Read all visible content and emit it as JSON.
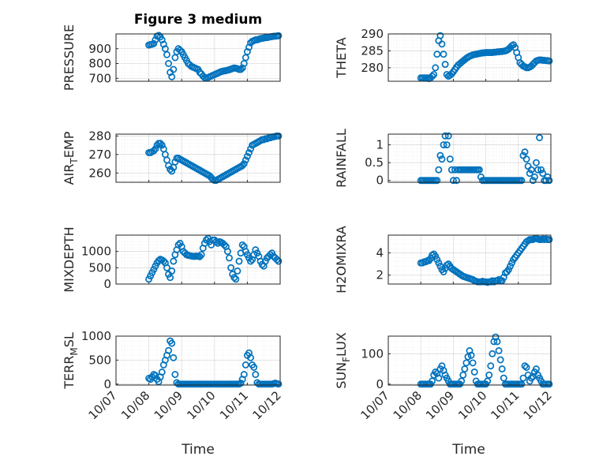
{
  "figure": {
    "title": "Figure 3 medium",
    "marker_color": "#0072BD",
    "x_axis": {
      "label": "Time",
      "range": [
        "10/07",
        "10/12"
      ],
      "tick_labels": [
        "10/07",
        "10/08",
        "10/09",
        "10/10",
        "10/11",
        "10/12"
      ]
    }
  },
  "chart_data": [
    {
      "id": "pressure",
      "type": "scatter",
      "ylabel": "PRESSURE",
      "ylabel_sub": "",
      "ylim": [
        680,
        1000
      ],
      "yticks": [
        700,
        800,
        900
      ],
      "grid": true,
      "minor_grid": true,
      "x": [
        1.0,
        1.05,
        1.1,
        1.15,
        1.2,
        1.25,
        1.3,
        1.35,
        1.4,
        1.45,
        1.5,
        1.55,
        1.6,
        1.65,
        1.7,
        1.75,
        1.8,
        1.85,
        1.9,
        1.95,
        2.0,
        2.05,
        2.1,
        2.15,
        2.2,
        2.25,
        2.3,
        2.35,
        2.4,
        2.45,
        2.5,
        2.55,
        2.6,
        2.65,
        2.7,
        2.75,
        2.8,
        2.85,
        2.9,
        2.95,
        3.0,
        3.05,
        3.1,
        3.15,
        3.2,
        3.25,
        3.3,
        3.35,
        3.4,
        3.45,
        3.5,
        3.55,
        3.6,
        3.65,
        3.7,
        3.75,
        3.8,
        3.85,
        3.9,
        3.95,
        4.0,
        4.05,
        4.1,
        4.15,
        4.2,
        4.25,
        4.3,
        4.35,
        4.4,
        4.45,
        4.5,
        4.55,
        4.6,
        4.65,
        4.7,
        4.75,
        4.8,
        4.85,
        4.9,
        4.95
      ],
      "y": [
        925,
        928,
        930,
        935,
        960,
        985,
        990,
        980,
        960,
        930,
        900,
        860,
        800,
        740,
        710,
        760,
        840,
        880,
        900,
        890,
        880,
        860,
        840,
        820,
        800,
        790,
        780,
        775,
        770,
        765,
        760,
        740,
        730,
        715,
        705,
        700,
        705,
        710,
        715,
        720,
        725,
        730,
        735,
        740,
        745,
        748,
        750,
        752,
        755,
        758,
        762,
        766,
        770,
        768,
        765,
        760,
        760,
        770,
        800,
        840,
        880,
        910,
        940,
        950,
        955,
        960,
        960,
        965,
        968,
        970,
        972,
        975,
        975,
        978,
        980,
        982,
        984,
        985,
        986,
        988
      ]
    },
    {
      "id": "theta",
      "type": "scatter",
      "ylabel": "THETA",
      "ylabel_sub": "",
      "ylim": [
        276,
        290
      ],
      "yticks": [
        280,
        285,
        290
      ],
      "grid": true,
      "minor_grid": true,
      "x": [
        1.0,
        1.05,
        1.1,
        1.15,
        1.2,
        1.25,
        1.3,
        1.35,
        1.4,
        1.45,
        1.5,
        1.55,
        1.6,
        1.65,
        1.7,
        1.75,
        1.8,
        1.85,
        1.9,
        1.95,
        2.0,
        2.05,
        2.1,
        2.15,
        2.2,
        2.25,
        2.3,
        2.35,
        2.4,
        2.45,
        2.5,
        2.55,
        2.6,
        2.65,
        2.7,
        2.75,
        2.8,
        2.85,
        2.9,
        2.95,
        3.0,
        3.05,
        3.1,
        3.15,
        3.2,
        3.25,
        3.3,
        3.35,
        3.4,
        3.45,
        3.5,
        3.55,
        3.6,
        3.65,
        3.7,
        3.75,
        3.8,
        3.85,
        3.9,
        3.95,
        4.0,
        4.05,
        4.1,
        4.15,
        4.2,
        4.25,
        4.3,
        4.35,
        4.4,
        4.45,
        4.5,
        4.55,
        4.6,
        4.65,
        4.7,
        4.75,
        4.8,
        4.85,
        4.9,
        4.95
      ],
      "y": [
        277,
        277,
        277,
        277,
        277,
        276.8,
        277,
        277.5,
        278,
        280,
        284,
        288,
        289.5,
        287,
        284,
        281,
        278,
        277.5,
        277.8,
        278.2,
        278.8,
        279.5,
        280.2,
        280.8,
        281.2,
        281.6,
        282,
        282.4,
        282.8,
        283.1,
        283.4,
        283.6,
        283.8,
        283.9,
        284,
        284.1,
        284.2,
        284.3,
        284.4,
        284.4,
        284.5,
        284.5,
        284.5,
        284.5,
        284.5,
        284.6,
        284.6,
        284.7,
        284.7,
        284.8,
        284.8,
        284.9,
        285,
        285.2,
        285.5,
        286,
        286.5,
        286.8,
        286,
        284.5,
        283,
        281.5,
        281,
        280.5,
        280.3,
        280,
        280,
        280.2,
        280.5,
        281,
        281.5,
        282,
        282.2,
        282.3,
        282.3,
        282.2,
        282.2,
        282.1,
        282.1,
        282
      ]
    },
    {
      "id": "air_temp",
      "type": "scatter",
      "ylabel": "AIR",
      "ylabel_sub": "T",
      "ylabel_rest": "EMP",
      "ylim": [
        255,
        281
      ],
      "yticks": [
        260,
        270,
        280
      ],
      "grid": true,
      "minor_grid": true,
      "x": [
        1.0,
        1.05,
        1.1,
        1.15,
        1.2,
        1.25,
        1.3,
        1.35,
        1.4,
        1.45,
        1.5,
        1.55,
        1.6,
        1.65,
        1.7,
        1.75,
        1.8,
        1.85,
        1.9,
        1.95,
        2.0,
        2.05,
        2.1,
        2.15,
        2.2,
        2.25,
        2.3,
        2.35,
        2.4,
        2.45,
        2.5,
        2.55,
        2.6,
        2.65,
        2.7,
        2.75,
        2.8,
        2.85,
        2.9,
        2.95,
        3.0,
        3.05,
        3.1,
        3.15,
        3.2,
        3.25,
        3.3,
        3.35,
        3.4,
        3.45,
        3.5,
        3.55,
        3.6,
        3.65,
        3.7,
        3.75,
        3.8,
        3.85,
        3.9,
        3.95,
        4.0,
        4.05,
        4.1,
        4.15,
        4.2,
        4.25,
        4.3,
        4.35,
        4.4,
        4.45,
        4.5,
        4.55,
        4.6,
        4.65,
        4.7,
        4.75,
        4.8,
        4.85,
        4.9,
        4.95
      ],
      "y": [
        271,
        271,
        271.5,
        272,
        273,
        275,
        276,
        276,
        275,
        273,
        270,
        267,
        264,
        262,
        261,
        263,
        266,
        268,
        268,
        267.5,
        267,
        266.5,
        266,
        265.5,
        265,
        264.5,
        264,
        263.5,
        263,
        262.5,
        262,
        261.5,
        261,
        260.5,
        260,
        259.5,
        259,
        258.5,
        257.5,
        256.5,
        256,
        256,
        256.5,
        257,
        257.5,
        258,
        258.5,
        259,
        259.5,
        260,
        260.5,
        261,
        261.5,
        262,
        262.5,
        263,
        263.5,
        264,
        265,
        267,
        269,
        271,
        273,
        275,
        275.5,
        276,
        276.5,
        277,
        277.5,
        278,
        278,
        278.5,
        278.5,
        279,
        279,
        279.5,
        279.5,
        279.8,
        280,
        280
      ]
    },
    {
      "id": "rainfall",
      "type": "scatter",
      "ylabel": "RAINFALL",
      "ylabel_sub": "",
      "ylim": [
        -0.05,
        1.3
      ],
      "yticks": [
        0,
        0.5,
        1
      ],
      "ytick_labels": [
        "0",
        "0.5",
        "1"
      ],
      "grid": true,
      "minor_grid": true,
      "x": [
        1.0,
        1.05,
        1.1,
        1.15,
        1.2,
        1.25,
        1.3,
        1.35,
        1.4,
        1.45,
        1.5,
        1.55,
        1.6,
        1.65,
        1.7,
        1.75,
        1.8,
        1.85,
        1.9,
        1.95,
        2.0,
        2.05,
        2.1,
        2.15,
        2.2,
        2.25,
        2.3,
        2.35,
        2.4,
        2.45,
        2.5,
        2.55,
        2.6,
        2.65,
        2.7,
        2.75,
        2.8,
        2.85,
        2.9,
        2.95,
        3.0,
        3.05,
        3.1,
        3.15,
        3.2,
        3.25,
        3.3,
        3.35,
        3.4,
        3.45,
        3.5,
        3.55,
        3.6,
        3.65,
        3.7,
        3.75,
        3.8,
        3.85,
        3.9,
        3.95,
        4.0,
        4.05,
        4.1,
        4.15,
        4.2,
        4.25,
        4.3,
        4.35,
        4.4,
        4.45,
        4.5,
        4.55,
        4.6,
        4.65,
        4.7,
        4.75,
        4.8,
        4.85,
        4.9,
        4.95
      ],
      "y": [
        0,
        0,
        0,
        0,
        0,
        0,
        0,
        0,
        0,
        0,
        0,
        0.3,
        0.7,
        0.6,
        1.0,
        1.25,
        1.0,
        1.25,
        0.6,
        0.3,
        0,
        0.3,
        0,
        0.3,
        0.3,
        0.3,
        0.3,
        0.3,
        0.3,
        0.3,
        0.3,
        0.3,
        0.3,
        0.3,
        0.3,
        0.3,
        0.3,
        0.1,
        0,
        0,
        0,
        0,
        0,
        0,
        0,
        0,
        0,
        0,
        0,
        0,
        0,
        0,
        0,
        0,
        0,
        0,
        0,
        0,
        0,
        0,
        0,
        0,
        0,
        0.7,
        0.8,
        0.6,
        0.4,
        0.2,
        0.3,
        0,
        0.1,
        0.5,
        0.3,
        1.2,
        0.3,
        0.2,
        0,
        0,
        0.1,
        0
      ]
    },
    {
      "id": "mixdepth",
      "type": "scatter",
      "ylabel": "MIXDEPTH",
      "ylabel_sub": "",
      "ylim": [
        0,
        1500
      ],
      "yticks": [
        0,
        500,
        1000
      ],
      "grid": true,
      "minor_grid": true,
      "x": [
        1.0,
        1.05,
        1.1,
        1.15,
        1.2,
        1.25,
        1.3,
        1.35,
        1.4,
        1.45,
        1.5,
        1.55,
        1.6,
        1.65,
        1.7,
        1.75,
        1.8,
        1.85,
        1.9,
        1.95,
        2.0,
        2.05,
        2.1,
        2.15,
        2.2,
        2.25,
        2.3,
        2.35,
        2.4,
        2.45,
        2.5,
        2.55,
        2.6,
        2.65,
        2.7,
        2.75,
        2.8,
        2.85,
        2.9,
        2.95,
        3.0,
        3.05,
        3.1,
        3.15,
        3.2,
        3.25,
        3.3,
        3.35,
        3.4,
        3.45,
        3.5,
        3.55,
        3.6,
        3.65,
        3.7,
        3.75,
        3.8,
        3.85,
        3.9,
        3.95,
        4.0,
        4.05,
        4.1,
        4.15,
        4.2,
        4.25,
        4.3,
        4.35,
        4.4,
        4.45,
        4.5,
        4.55,
        4.6,
        4.65,
        4.7,
        4.75,
        4.8,
        4.85,
        4.9,
        4.95
      ],
      "y": [
        150,
        250,
        350,
        450,
        550,
        650,
        720,
        760,
        740,
        700,
        650,
        500,
        300,
        200,
        400,
        700,
        900,
        1050,
        1200,
        1250,
        1150,
        1000,
        950,
        900,
        880,
        870,
        860,
        850,
        850,
        860,
        850,
        840,
        900,
        1100,
        1250,
        1350,
        1400,
        1300,
        1200,
        1350,
        1350,
        1300,
        1250,
        1300,
        1280,
        1250,
        1200,
        1150,
        1000,
        800,
        500,
        300,
        200,
        150,
        400,
        700,
        950,
        1200,
        1150,
        1000,
        900,
        800,
        700,
        750,
        900,
        1050,
        950,
        850,
        700,
        600,
        550,
        700,
        800,
        850,
        900,
        950,
        850,
        800,
        750,
        700
      ]
    },
    {
      "id": "h2o_mixra",
      "type": "scatter",
      "ylabel": "H2OMIXRA",
      "ylabel_sub": "",
      "ylim": [
        1.2,
        5.6
      ],
      "yticks": [
        2,
        4
      ],
      "grid": true,
      "minor_grid": true,
      "x": [
        1.0,
        1.05,
        1.1,
        1.15,
        1.2,
        1.25,
        1.3,
        1.35,
        1.4,
        1.45,
        1.5,
        1.55,
        1.6,
        1.65,
        1.7,
        1.75,
        1.8,
        1.85,
        1.9,
        1.95,
        2.0,
        2.05,
        2.1,
        2.15,
        2.2,
        2.25,
        2.3,
        2.35,
        2.4,
        2.45,
        2.5,
        2.55,
        2.6,
        2.65,
        2.7,
        2.75,
        2.8,
        2.85,
        2.9,
        2.95,
        3.0,
        3.05,
        3.1,
        3.15,
        3.2,
        3.25,
        3.3,
        3.35,
        3.4,
        3.45,
        3.5,
        3.55,
        3.6,
        3.65,
        3.7,
        3.75,
        3.8,
        3.85,
        3.9,
        3.95,
        4.0,
        4.05,
        4.1,
        4.15,
        4.2,
        4.25,
        4.3,
        4.35,
        4.4,
        4.45,
        4.5,
        4.55,
        4.6,
        4.65,
        4.7,
        4.75,
        4.8,
        4.85,
        4.9,
        4.95
      ],
      "y": [
        3.1,
        3.1,
        3.2,
        3.2,
        3.3,
        3.3,
        3.5,
        3.8,
        3.9,
        3.7,
        3.4,
        3.1,
        2.8,
        2.5,
        2.3,
        2.6,
        2.9,
        3.0,
        2.8,
        2.6,
        2.5,
        2.4,
        2.3,
        2.2,
        2.1,
        2.0,
        1.9,
        1.85,
        1.8,
        1.75,
        1.7,
        1.65,
        1.6,
        1.5,
        1.45,
        1.4,
        1.4,
        1.4,
        1.45,
        1.4,
        1.4,
        1.35,
        1.4,
        1.4,
        1.5,
        1.4,
        1.5,
        1.5,
        1.6,
        1.5,
        1.5,
        1.8,
        2.2,
        2.3,
        2.5,
        2.8,
        3.1,
        3.4,
        3.6,
        3.8,
        4.0,
        4.2,
        4.4,
        4.6,
        4.8,
        5.0,
        5.1,
        5.2,
        5.2,
        5.2,
        5.3,
        5.3,
        5.25,
        5.2,
        5.2,
        5.25,
        5.2,
        5.25,
        5.2,
        5.2
      ]
    },
    {
      "id": "terr_msl",
      "type": "scatter",
      "ylabel": "TERR",
      "ylabel_sub": "M",
      "ylabel_rest": "SL",
      "ylim": [
        -20,
        1000
      ],
      "yticks": [
        0,
        500,
        1000
      ],
      "grid": true,
      "minor_grid": true,
      "x": [
        1.0,
        1.05,
        1.1,
        1.15,
        1.2,
        1.25,
        1.3,
        1.35,
        1.4,
        1.45,
        1.5,
        1.55,
        1.6,
        1.65,
        1.7,
        1.75,
        1.8,
        1.85,
        1.9,
        1.95,
        2.0,
        2.05,
        2.1,
        2.15,
        2.2,
        2.25,
        2.3,
        2.35,
        2.4,
        2.45,
        2.5,
        2.55,
        2.6,
        2.65,
        2.7,
        2.75,
        2.8,
        2.85,
        2.9,
        2.95,
        3.0,
        3.05,
        3.1,
        3.15,
        3.2,
        3.25,
        3.3,
        3.35,
        3.4,
        3.45,
        3.5,
        3.55,
        3.6,
        3.65,
        3.7,
        3.75,
        3.8,
        3.85,
        3.9,
        3.95,
        4.0,
        4.05,
        4.1,
        4.15,
        4.2,
        4.25,
        4.3,
        4.35,
        4.4,
        4.45,
        4.5,
        4.55,
        4.6,
        4.65,
        4.7,
        4.75,
        4.8,
        4.85,
        4.9,
        4.95
      ],
      "y": [
        120,
        100,
        150,
        200,
        180,
        100,
        50,
        150,
        250,
        400,
        500,
        600,
        700,
        900,
        850,
        550,
        200,
        30,
        0,
        0,
        0,
        0,
        0,
        0,
        0,
        0,
        0,
        0,
        0,
        0,
        0,
        0,
        0,
        0,
        0,
        0,
        0,
        0,
        0,
        0,
        0,
        0,
        0,
        0,
        0,
        0,
        0,
        0,
        0,
        0,
        0,
        0,
        0,
        0,
        0,
        0,
        20,
        100,
        200,
        400,
        600,
        650,
        550,
        400,
        350,
        200,
        30,
        0,
        0,
        0,
        0,
        0,
        0,
        0,
        0,
        0,
        10,
        20,
        10,
        0
      ]
    },
    {
      "id": "sun_flux",
      "type": "scatter",
      "ylabel": "SUN",
      "ylabel_sub": "F",
      "ylabel_rest": "LUX",
      "ylim": [
        -3,
        158
      ],
      "yticks": [
        0,
        100
      ],
      "grid": true,
      "minor_grid": true,
      "x": [
        1.0,
        1.05,
        1.1,
        1.15,
        1.2,
        1.25,
        1.3,
        1.35,
        1.4,
        1.45,
        1.5,
        1.55,
        1.6,
        1.65,
        1.7,
        1.75,
        1.8,
        1.85,
        1.9,
        1.95,
        2.0,
        2.05,
        2.1,
        2.15,
        2.2,
        2.25,
        2.3,
        2.35,
        2.4,
        2.45,
        2.5,
        2.55,
        2.6,
        2.65,
        2.7,
        2.75,
        2.8,
        2.85,
        2.9,
        2.95,
        3.0,
        3.05,
        3.1,
        3.15,
        3.2,
        3.25,
        3.3,
        3.35,
        3.4,
        3.45,
        3.5,
        3.55,
        3.6,
        3.65,
        3.7,
        3.75,
        3.8,
        3.85,
        3.9,
        3.95,
        4.0,
        4.05,
        4.1,
        4.15,
        4.2,
        4.25,
        4.3,
        4.35,
        4.4,
        4.45,
        4.5,
        4.55,
        4.6,
        4.65,
        4.7,
        4.75,
        4.8,
        4.85,
        4.9,
        4.95
      ],
      "y": [
        0,
        0,
        0,
        0,
        0,
        0,
        0,
        10,
        30,
        40,
        35,
        20,
        50,
        60,
        45,
        30,
        20,
        10,
        0,
        0,
        0,
        0,
        0,
        0,
        0,
        10,
        30,
        50,
        70,
        90,
        110,
        95,
        70,
        40,
        10,
        0,
        0,
        0,
        0,
        0,
        0,
        10,
        30,
        60,
        100,
        140,
        155,
        140,
        110,
        80,
        50,
        20,
        0,
        0,
        0,
        0,
        0,
        0,
        0,
        0,
        0,
        0,
        0,
        20,
        60,
        55,
        30,
        10,
        20,
        25,
        40,
        50,
        30,
        20,
        10,
        0,
        0,
        0,
        0,
        0
      ]
    }
  ]
}
